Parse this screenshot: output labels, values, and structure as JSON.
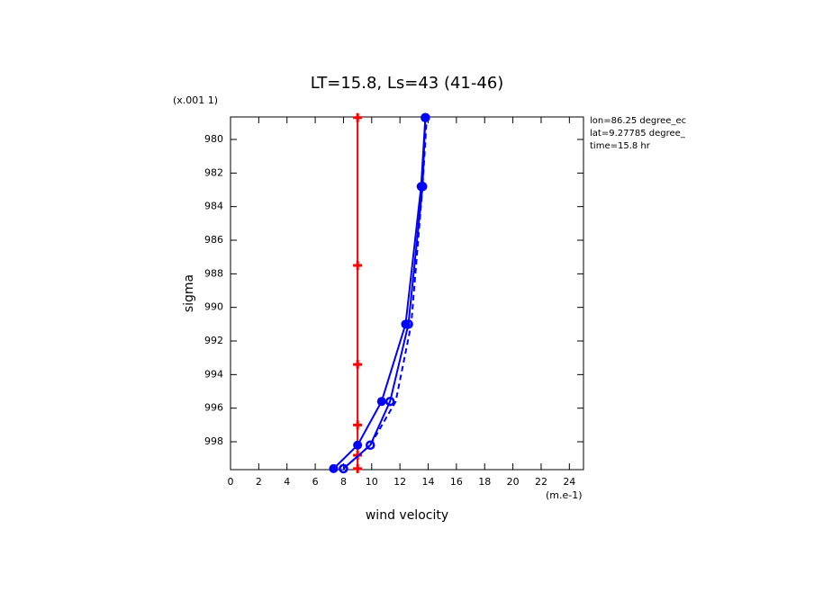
{
  "chart_data": {
    "type": "line",
    "title": "LT=15.8, Ls=43 (41-46)",
    "y_scale_label": "(x.001 1)",
    "ylabel": "sigma",
    "xlabel": "wind velocity",
    "x_units_label": "(m.e-1)",
    "info": [
      "lon=86.25 degree_ec",
      "lat=9.27785 degree_",
      "time=15.8 hr"
    ],
    "xlim": [
      0,
      25
    ],
    "xticks": [
      0,
      2,
      4,
      6,
      8,
      10,
      12,
      14,
      16,
      18,
      20,
      22,
      24
    ],
    "ylim": [
      999.66,
      978.66
    ],
    "yticks": [
      980,
      982,
      984,
      986,
      988,
      990,
      992,
      994,
      996,
      998
    ],
    "series": [
      {
        "color": "#ff0000",
        "dash": false,
        "marker": "plus",
        "x": [
          9.0,
          9.0,
          9.0,
          9.0,
          9.0,
          9.0
        ],
        "y": [
          978.7,
          987.5,
          993.4,
          997.0,
          998.8,
          999.6
        ]
      },
      {
        "color": "#0000ff",
        "dash": false,
        "marker": "filled",
        "x": [
          7.3,
          9.0,
          10.7,
          12.4,
          13.5,
          13.8
        ],
        "y": [
          999.6,
          998.2,
          995.6,
          991.0,
          982.8,
          978.7
        ]
      },
      {
        "color": "#0000ff",
        "dash": false,
        "marker": "open",
        "x": [
          8.0,
          9.9,
          11.3,
          12.6,
          13.6,
          13.8
        ],
        "y": [
          999.6,
          998.2,
          995.6,
          991.0,
          982.8,
          978.7
        ]
      },
      {
        "color": "#0000ff",
        "dash": true,
        "marker": "none",
        "x": [
          8.0,
          9.9,
          11.7,
          12.8,
          13.6,
          13.9
        ],
        "y": [
          999.6,
          998.2,
          995.6,
          991.0,
          982.8,
          978.7
        ]
      }
    ]
  }
}
